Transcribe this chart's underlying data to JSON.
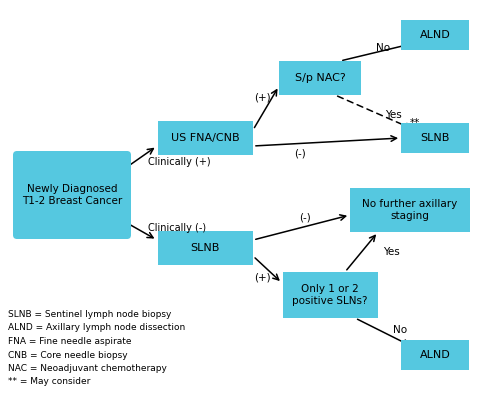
{
  "bg_color": "#ffffff",
  "box_color": "#55c8e0",
  "figsize": [
    5.0,
    3.95
  ],
  "dpi": 100,
  "legend_lines": [
    "SLNB = Sentinel lymph node biopsy",
    "ALND = Axillary lymph node dissection",
    "FNA = Fine needle aspirate",
    "CNB = Core needle biopsy",
    "NAC = Neoadjuvant chemotherapy",
    "** = May consider"
  ]
}
